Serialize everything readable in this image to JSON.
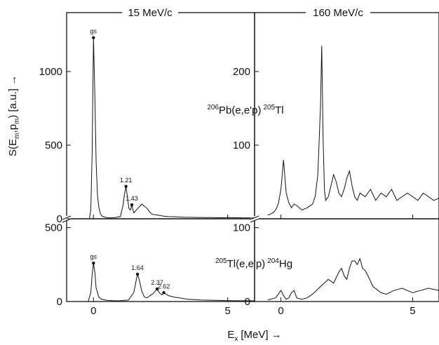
{
  "chart_data": {
    "type": "line",
    "xlabel": "E",
    "xlabel_sub": "x",
    "xlabel_unit": "[MeV] →",
    "ylabel": "S(E",
    "ylabel_sub1": "m",
    "ylabel_mid": ",p",
    "ylabel_sub2": "m",
    "ylabel_unit": ") [a.u.] →",
    "columns": [
      {
        "title": "15 MeV/c",
        "xlim": [
          -1.0,
          6.0
        ],
        "xticks": [
          0,
          5
        ],
        "tick_labels": [
          "0",
          "5"
        ]
      },
      {
        "title": "160 MeV/c",
        "xlim": [
          -1.0,
          6.0
        ],
        "xticks": [
          0,
          5
        ],
        "tick_labels": [
          "0",
          "5"
        ]
      }
    ],
    "panels": [
      {
        "id": "pb-15",
        "row": 0,
        "col": 0,
        "reaction": {
          "mass_a": "206",
          "target": "Pb(e,e'p)",
          "mass_b": "205",
          "residual": "Tl"
        },
        "ylim": [
          0,
          1400
        ],
        "yticks": [
          0,
          500,
          1000
        ],
        "tick_labels": [
          "0",
          "500",
          "1000"
        ],
        "peaks": [
          {
            "label": "gs",
            "x": 0.0,
            "y": 1230
          },
          {
            "label": "1.21",
            "x": 1.21,
            "y": 220
          },
          {
            "label": "1.43",
            "x": 1.43,
            "y": 95
          }
        ],
        "series": [
          {
            "x": [
              -0.15,
              -0.1,
              -0.05,
              0.0,
              0.05,
              0.1,
              0.15,
              0.2,
              0.25,
              0.3,
              0.4,
              0.5,
              0.6,
              0.8,
              1.0,
              1.1,
              1.15,
              1.21,
              1.27,
              1.32,
              1.38,
              1.43,
              1.5,
              1.6,
              1.7,
              1.8,
              1.9,
              2.0,
              2.1,
              2.2,
              2.4,
              2.6,
              2.8,
              3.0,
              3.2,
              3.4,
              3.6,
              3.8,
              4.0,
              4.2,
              4.4,
              4.6,
              4.8,
              5.0,
              5.2,
              5.4,
              5.6,
              5.8,
              6.0
            ],
            "y": [
              0,
              60,
              450,
              1230,
              850,
              380,
              160,
              80,
              40,
              20,
              12,
              8,
              6,
              8,
              15,
              90,
              160,
              220,
              140,
              70,
              60,
              95,
              40,
              60,
              80,
              100,
              85,
              70,
              45,
              30,
              25,
              18,
              15,
              14,
              12,
              10,
              10,
              9,
              9,
              8,
              8,
              7,
              7,
              8,
              7,
              7,
              6,
              6,
              5
            ]
          }
        ]
      },
      {
        "id": "pb-160",
        "row": 0,
        "col": 1,
        "ylim": [
          0,
          280
        ],
        "yticks": [
          100,
          200
        ],
        "tick_labels": [
          "100",
          "200"
        ],
        "series": [
          {
            "x": [
              -0.5,
              -0.3,
              -0.2,
              -0.1,
              0.0,
              0.1,
              0.2,
              0.3,
              0.4,
              0.5,
              0.6,
              0.8,
              1.0,
              1.2,
              1.3,
              1.4,
              1.5,
              1.55,
              1.6,
              1.65,
              1.7,
              1.8,
              1.9,
              2.0,
              2.1,
              2.2,
              2.3,
              2.4,
              2.5,
              2.6,
              2.7,
              2.8,
              2.9,
              3.0,
              3.2,
              3.4,
              3.6,
              3.8,
              4.0,
              4.2,
              4.4,
              4.6,
              4.8,
              5.0,
              5.2,
              5.4,
              5.6,
              5.8,
              6.0
            ],
            "y": [
              5,
              8,
              12,
              20,
              40,
              80,
              35,
              22,
              15,
              20,
              18,
              12,
              15,
              20,
              30,
              60,
              150,
              235,
              110,
              40,
              25,
              30,
              45,
              60,
              50,
              35,
              30,
              40,
              55,
              65,
              45,
              30,
              25,
              35,
              30,
              40,
              25,
              35,
              30,
              40,
              25,
              30,
              35,
              30,
              25,
              35,
              30,
              25,
              28
            ]
          }
        ]
      },
      {
        "id": "tl-15",
        "row": 1,
        "col": 0,
        "reaction": {
          "mass_a": "205",
          "target": "Tl(e,e'p)",
          "mass_b": "204",
          "residual": "Hg"
        },
        "ylim": [
          0,
          560
        ],
        "yticks": [
          0,
          500
        ],
        "tick_labels": [
          "0",
          "500"
        ],
        "peaks": [
          {
            "label": "gs",
            "x": 0.0,
            "y": 260
          },
          {
            "label": "1.64",
            "x": 1.64,
            "y": 185
          },
          {
            "label": "2.37",
            "x": 2.37,
            "y": 85
          },
          {
            "label": "2.62",
            "x": 2.62,
            "y": 60
          }
        ],
        "series": [
          {
            "x": [
              -0.2,
              -0.1,
              -0.05,
              0.0,
              0.05,
              0.1,
              0.2,
              0.3,
              0.5,
              0.8,
              1.0,
              1.3,
              1.5,
              1.6,
              1.64,
              1.7,
              1.8,
              1.9,
              2.0,
              2.1,
              2.2,
              2.3,
              2.37,
              2.45,
              2.55,
              2.62,
              2.7,
              2.8,
              3.0,
              3.2,
              3.5,
              4.0,
              4.5,
              5.0,
              5.5,
              6.0
            ],
            "y": [
              0,
              60,
              180,
              260,
              200,
              90,
              30,
              15,
              8,
              5,
              6,
              10,
              60,
              150,
              185,
              150,
              70,
              30,
              25,
              40,
              50,
              70,
              85,
              60,
              45,
              60,
              50,
              40,
              30,
              25,
              15,
              10,
              8,
              6,
              5,
              5
            ]
          }
        ]
      },
      {
        "id": "tl-160",
        "row": 1,
        "col": 1,
        "ylim": [
          0,
          112
        ],
        "yticks": [
          0,
          100
        ],
        "tick_labels": [
          "0",
          "100"
        ],
        "series": [
          {
            "x": [
              -0.5,
              -0.2,
              0.0,
              0.1,
              0.2,
              0.3,
              0.4,
              0.5,
              0.6,
              0.8,
              1.0,
              1.2,
              1.5,
              1.8,
              2.0,
              2.2,
              2.3,
              2.4,
              2.5,
              2.6,
              2.7,
              2.8,
              2.9,
              3.0,
              3.1,
              3.2,
              3.3,
              3.5,
              3.8,
              4.0,
              4.3,
              4.6,
              5.0,
              5.3,
              5.6,
              6.0
            ],
            "y": [
              2,
              5,
              15,
              8,
              3,
              5,
              12,
              15,
              5,
              3,
              5,
              10,
              20,
              30,
              25,
              40,
              45,
              35,
              30,
              45,
              55,
              55,
              50,
              58,
              45,
              42,
              35,
              20,
              12,
              10,
              15,
              18,
              12,
              15,
              18,
              15
            ]
          }
        ]
      }
    ]
  }
}
